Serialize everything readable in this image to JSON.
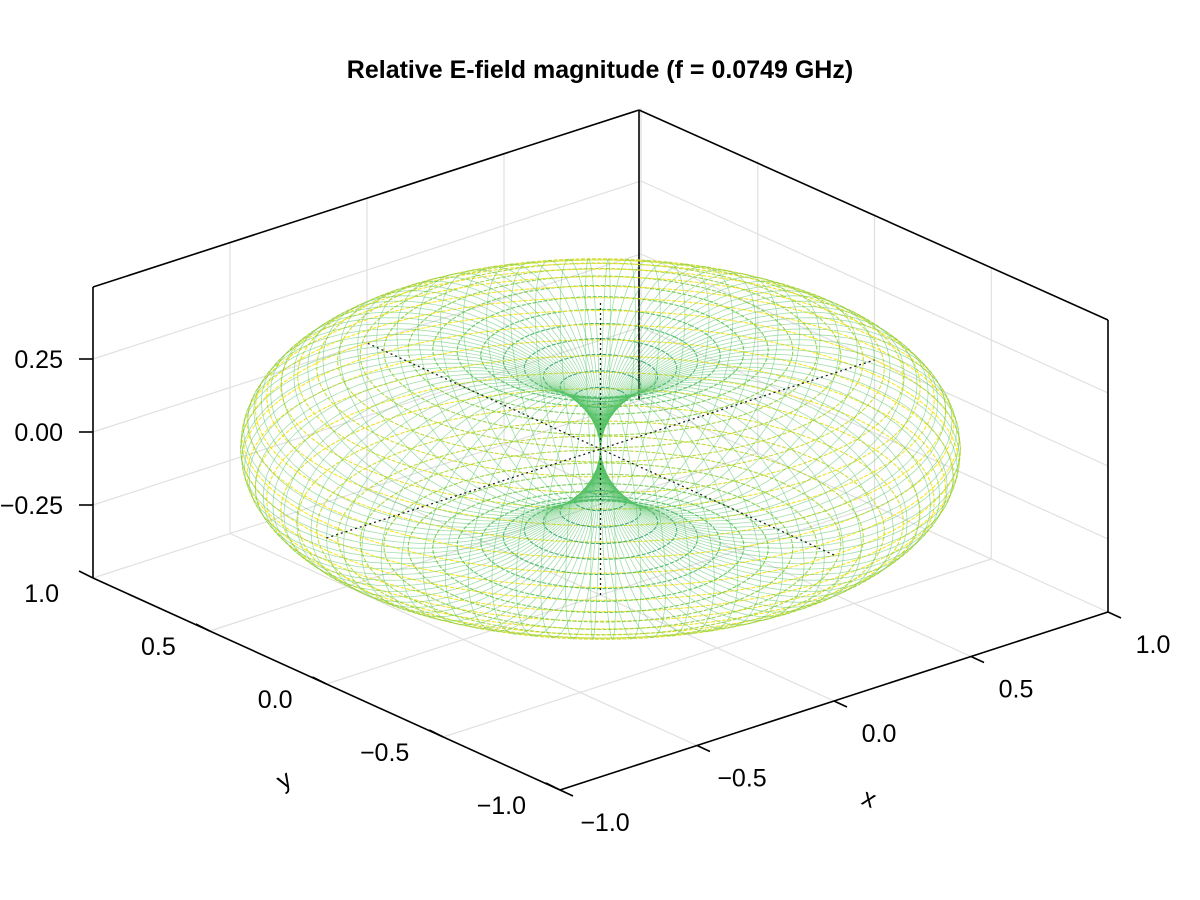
{
  "chart_data": {
    "type": "scatter",
    "subtype": "3d-surface-wireframe",
    "title": "Relative E-field magnitude (f = 0.0749 GHz)",
    "xlabel": "x",
    "ylabel": "y",
    "zlabel": "",
    "x_ticks": [
      "−1.0",
      "−0.5",
      "0.0",
      "0.5",
      "1.0"
    ],
    "y_ticks": [
      "−1.0",
      "−0.5",
      "0.0",
      "0.5",
      "1.0"
    ],
    "z_ticks": [
      "−0.25",
      "0.00",
      "0.25"
    ],
    "x_tick_values": [
      -1.0,
      -0.5,
      0.0,
      0.5,
      1.0
    ],
    "y_tick_values": [
      -1.0,
      -0.5,
      0.0,
      0.5,
      1.0
    ],
    "z_tick_values": [
      -0.25,
      0.0,
      0.25
    ],
    "xlim": [
      -1.0,
      1.0
    ],
    "ylim": [
      -1.0,
      1.0
    ],
    "zlim": [
      -0.5,
      0.5
    ],
    "surface": "torus-shaped radiation pattern (dipole-like, |E| ∝ sin θ)",
    "colormap": "viridis",
    "grid": true,
    "colors": {
      "low": "#2a788e",
      "mid": "#7ad151",
      "high": "#fde725",
      "axis": "#000000",
      "grid": "#e0e0e0"
    }
  }
}
